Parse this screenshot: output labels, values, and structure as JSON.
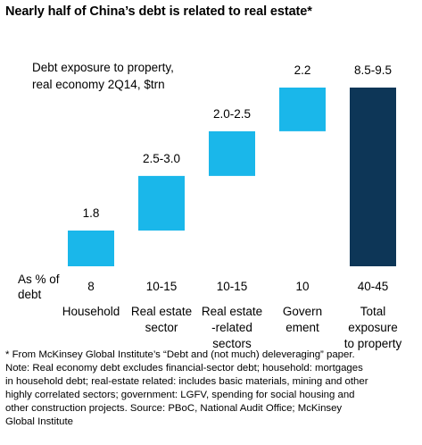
{
  "chart_data": {
    "type": "bar",
    "subtype": "waterfall",
    "title": "Nearly half of China’s debt is related to real estate*",
    "subtitle": [
      "Debt exposure to property,",
      "real economy 2Q14, $trn"
    ],
    "categories": [
      [
        "Household"
      ],
      [
        "Real estate",
        "sector"
      ],
      [
        "Real estate",
        "-related",
        "sectors"
      ],
      [
        "Govern",
        "ement"
      ],
      [
        "Total",
        "exposure",
        "to property"
      ]
    ],
    "value_labels": [
      "1.8",
      "2.5-3.0",
      "2.0-2.5",
      "2.2",
      "8.5-9.5"
    ],
    "segments": [
      {
        "start": 0,
        "end": 1.8
      },
      {
        "start": 1.8,
        "end": 4.55
      },
      {
        "start": 4.55,
        "end": 6.8
      },
      {
        "start": 6.8,
        "end": 9.0
      },
      {
        "start": 0,
        "end": 9.0
      }
    ],
    "percent_header": [
      "As % of",
      "debt"
    ],
    "percent_of_debt": [
      "8",
      "10-15",
      "10-15",
      "10",
      "40-45"
    ],
    "colors": {
      "increment": "#1ab7ea",
      "total": "#0d3657"
    },
    "ylim": [
      0,
      9.0
    ],
    "notes": [
      "* From McKinsey Global Institute’s “Debt and (not much) deleveraging” paper.",
      "Note: Real economy debt excludes financial-sector debt; household: mortgages",
      "in household debt; real-estate related: includes basic materials, mining and other",
      "highly correlated sectors; government: LGFV, spending for social housing and",
      "other construction projects. Source: PBoC, National Audit Office; McKinsey",
      "Global Institute"
    ]
  }
}
